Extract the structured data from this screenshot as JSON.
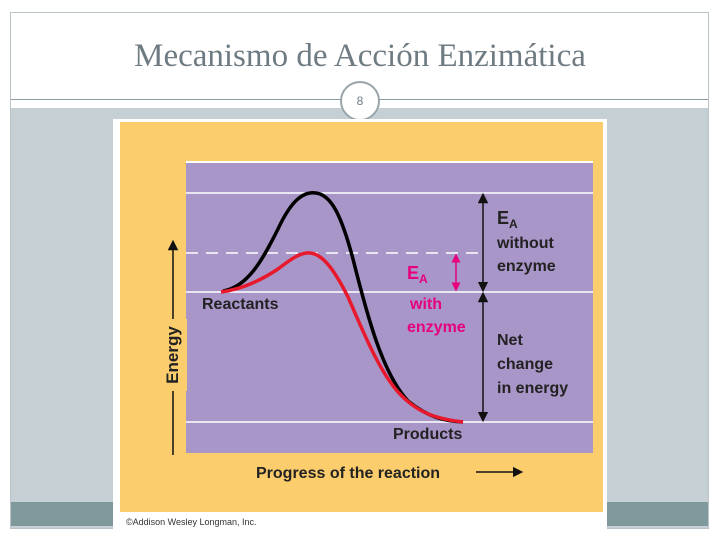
{
  "slide": {
    "title": "Mecanismo de Acción Enzimática",
    "page_number": "8"
  },
  "diagram": {
    "y_axis_label": "Energy",
    "x_axis_label": "Progress of the reaction",
    "reactants_label": "Reactants",
    "products_label": "Products",
    "ea_without_enzyme": {
      "symbol": "E",
      "subscript": "A",
      "line1": "without",
      "line2": "enzyme"
    },
    "ea_with_enzyme": {
      "symbol": "E",
      "subscript": "A",
      "line1": "with",
      "line2": "enzyme"
    },
    "net_change": {
      "line1": "Net",
      "line2": "change",
      "line3": "in energy"
    },
    "copyright": "©Addison Wesley Longman, Inc.",
    "colors": {
      "background": "#fccd6c",
      "plot": "#a996c8",
      "curve_without_enzyme": "#000000",
      "curve_with_enzyme": "#e8192c",
      "ea_with_enzyme_text": "#e6007e"
    }
  }
}
